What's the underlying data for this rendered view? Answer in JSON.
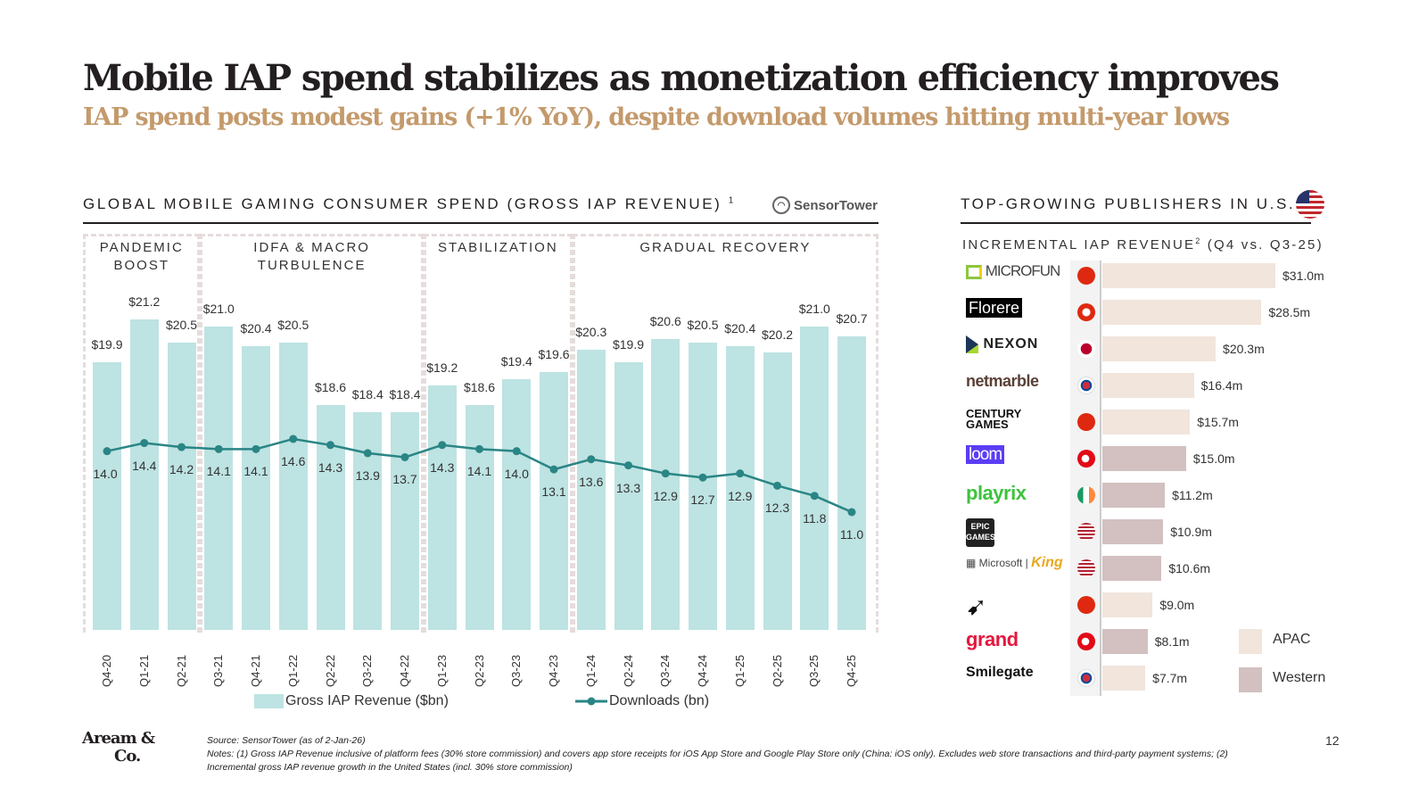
{
  "title": "Mobile IAP spend stabilizes as monetization efficiency improves",
  "subtitle": "IAP spend posts modest gains (+1% YoY), despite download volumes hitting multi-year lows",
  "source_logo": "SensorTower",
  "page_number": "12",
  "footer_logo": "Aream & Co.",
  "source": "Source: SensorTower (as of 2-Jan-26)",
  "notes": "Notes: (1) Gross IAP Revenue inclusive of platform fees (30% store commission) and covers app store receipts for iOS App Store and Google Play Store only (China: iOS only). Excludes web store transactions and third-party payment systems; (2) Incremental gross IAP revenue growth in the United States (incl. 30% store commission)",
  "chart_data": [
    {
      "type": "bar+line",
      "title": "GLOBAL MOBILE GAMING CONSUMER SPEND (GROSS IAP REVENUE)",
      "title_sup": "1",
      "categories": [
        "Q4-20",
        "Q1-21",
        "Q2-21",
        "Q3-21",
        "Q4-21",
        "Q1-22",
        "Q2-22",
        "Q3-22",
        "Q4-22",
        "Q1-23",
        "Q2-23",
        "Q3-23",
        "Q4-23",
        "Q1-24",
        "Q2-24",
        "Q3-24",
        "Q4-24",
        "Q1-25",
        "Q2-25",
        "Q3-25",
        "Q4-25"
      ],
      "series": [
        {
          "name": "Gross IAP Revenue ($bn)",
          "type": "bar",
          "color": "#bde3e2",
          "ylim": [
            11.8,
            23.8
          ],
          "values": [
            19.9,
            21.2,
            20.5,
            21.0,
            20.4,
            20.5,
            18.6,
            18.4,
            18.4,
            19.2,
            18.6,
            19.4,
            19.6,
            20.3,
            19.9,
            20.6,
            20.5,
            20.4,
            20.2,
            21.0,
            20.7
          ],
          "labels": [
            "$19.9",
            "$21.2",
            "$20.5",
            "$21.0",
            "$20.4",
            "$20.5",
            "$18.6",
            "$18.4",
            "$18.4",
            "$19.2",
            "$18.6",
            "$19.4",
            "$19.6",
            "$20.3",
            "$19.9",
            "$20.6",
            "$20.5",
            "$20.4",
            "$20.2",
            "$21.0",
            "$20.7"
          ]
        },
        {
          "name": "Downloads (bn)",
          "type": "line",
          "color": "#2a8585",
          "ylim": [
            5.2,
            24.7
          ],
          "values": [
            14.0,
            14.4,
            14.2,
            14.1,
            14.1,
            14.6,
            14.3,
            13.9,
            13.7,
            14.3,
            14.1,
            14.0,
            13.1,
            13.6,
            13.3,
            12.9,
            12.7,
            12.9,
            12.3,
            11.8,
            11.0
          ],
          "labels": [
            "14.0",
            "14.4",
            "14.2",
            "14.1",
            "14.1",
            "14.6",
            "14.3",
            "13.9",
            "13.7",
            "14.3",
            "14.1",
            "14.0",
            "13.1",
            "13.6",
            "13.3",
            "12.9",
            "12.7",
            "12.9",
            "12.3",
            "11.8",
            "11.0"
          ]
        }
      ],
      "periods": [
        {
          "label": "PANDEMIC BOOST",
          "lines": [
            "PANDEMIC",
            "BOOST"
          ],
          "from": "Q4-20",
          "to": "Q2-21"
        },
        {
          "label": "IDFA & MACRO TURBULENCE",
          "lines": [
            "IDFA & MACRO",
            "TURBULENCE"
          ],
          "from": "Q3-21",
          "to": "Q4-22"
        },
        {
          "label": "STABILIZATION",
          "lines": [
            "STABILIZATION"
          ],
          "from": "Q1-23",
          "to": "Q4-23"
        },
        {
          "label": "GRADUAL RECOVERY",
          "lines": [
            "GRADUAL RECOVERY"
          ],
          "from": "Q1-24",
          "to": "Q4-25"
        }
      ],
      "legend": [
        "Gross IAP Revenue ($bn)",
        "Downloads (bn)"
      ],
      "legend_position": "bottom"
    },
    {
      "type": "bar",
      "orientation": "horizontal",
      "title": "TOP-GROWING PUBLISHERS IN U.S.",
      "title_icon": "us-flag-icon",
      "subtitle": "INCREMENTAL IAP REVENUE",
      "subtitle_sup": "2",
      "subtitle_tail": " (Q4 vs. Q3-25)",
      "xlim": [
        0,
        31
      ],
      "colors": {
        "APAC": "#f1e5dc",
        "Western": "#d3c0c0"
      },
      "legend": [
        "APAC",
        "Western"
      ],
      "legend_position": "bottom-right",
      "countries": [
        "china",
        "hong-kong",
        "japan",
        "south-korea",
        "china",
        "turkey",
        "ireland",
        "usa",
        "usa",
        "china",
        "turkey",
        "south-korea"
      ],
      "regions": [
        "APAC",
        "APAC",
        "APAC",
        "APAC",
        "APAC",
        "Western",
        "Western",
        "Western",
        "Western",
        "APAC",
        "Western",
        "APAC"
      ],
      "values": [
        31.0,
        28.5,
        20.3,
        16.4,
        15.7,
        15.0,
        11.2,
        10.9,
        10.6,
        9.0,
        8.1,
        7.7
      ],
      "labels": [
        "$31.0m",
        "$28.5m",
        "$20.3m",
        "$16.4m",
        "$15.7m",
        "$15.0m",
        "$11.2m",
        "$10.9m",
        "$10.6m",
        "$9.0m",
        "$8.1m",
        "$7.7m"
      ],
      "logo_text": [
        "MICROFUN",
        "Florere",
        "NEXON",
        "netmarble",
        "CENTURY GAMES",
        "loom",
        "playrix",
        "EPIC GAMES",
        "Microsoft | King",
        "",
        "grand",
        "Smilegate"
      ]
    }
  ]
}
